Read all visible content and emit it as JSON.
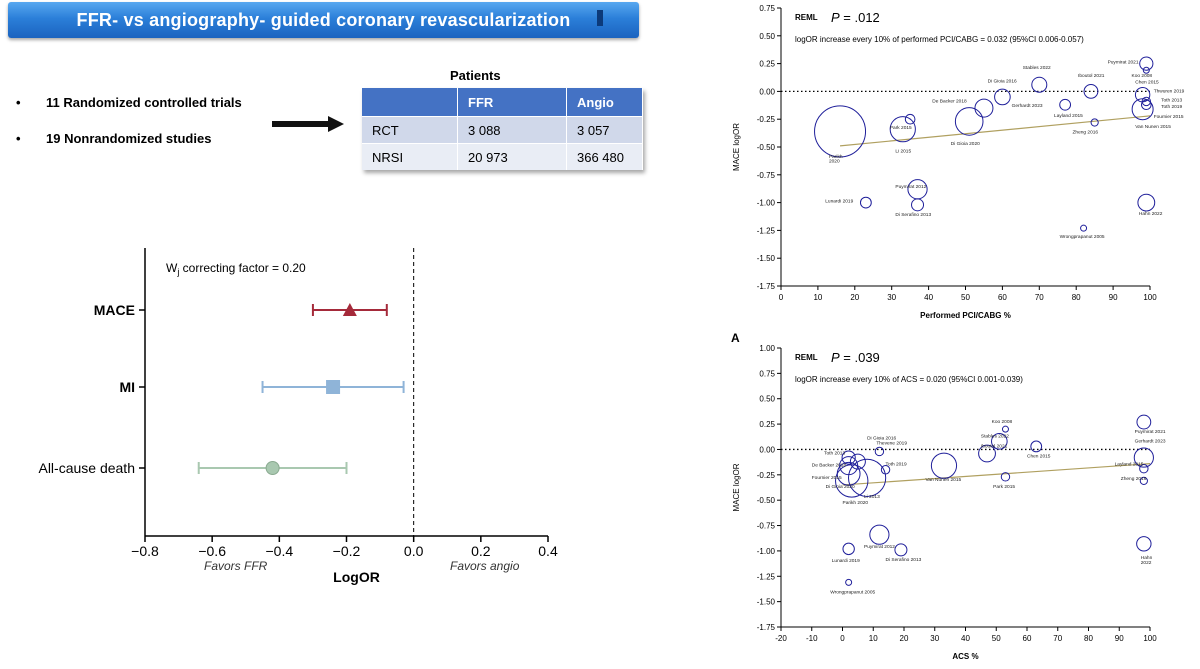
{
  "banner": {
    "title": "FFR- vs angiography- guided  coronary  revascularization"
  },
  "bullets": [
    {
      "marker": "•",
      "text": "11 Randomized controlled trials"
    },
    {
      "marker": "•",
      "text": "19 Nonrandomized studies"
    }
  ],
  "patients_table": {
    "title": "Patients",
    "headers": [
      "",
      "FFR",
      "Angio"
    ],
    "rows": [
      [
        "RCT",
        "3 088",
        "3 057"
      ],
      [
        "NRSI",
        "20 973",
        "366 480"
      ]
    ]
  },
  "colors": {
    "banner": "#2b7fd9",
    "mace": "#a52a3a",
    "mi": "#8fb4d8",
    "death": "#a9c8b0",
    "bubble": "#1f1f9a",
    "trend": "#b0a060"
  },
  "chart_data": [
    {
      "type": "forest",
      "annotation_main": "W",
      "annotation_sub": "j",
      "annotation_rest": " correcting factor =  0.20",
      "xlabel": "LogOR",
      "xlim": [
        -0.8,
        0.4
      ],
      "xticks": [
        -0.8,
        -0.6,
        -0.4,
        -0.2,
        0.0,
        0.2,
        0.4
      ],
      "tick_labels": [
        "−0.8",
        "−0.6",
        "−0.4",
        "−0.2",
        "0.0",
        "0.2",
        "0.4"
      ],
      "left_note": "Favors FFR",
      "right_note": "Favors angio",
      "rows": [
        {
          "label": "MACE",
          "bold": true,
          "estimate": -0.19,
          "lower": -0.3,
          "upper": -0.08,
          "marker": "triangle",
          "color": "#a52a3a"
        },
        {
          "label": "MI",
          "bold": true,
          "estimate": -0.24,
          "lower": -0.45,
          "upper": -0.03,
          "marker": "square",
          "color": "#8fb4d8"
        },
        {
          "label": "All-cause death",
          "bold": false,
          "estimate": -0.42,
          "lower": -0.64,
          "upper": -0.2,
          "marker": "circle",
          "color": "#a9c8b0"
        }
      ]
    },
    {
      "type": "scatter",
      "panel_label": "",
      "method": "REML",
      "p_text": "P = .012",
      "note": "logOR increase every 10% of performed PCI/CABG = 0.032 (95%CI 0.006-0.057)",
      "xlabel": "Performed PCI/CABG %",
      "ylabel": "MACE logOR",
      "xlim": [
        0,
        100
      ],
      "ylim": [
        -1.75,
        0.75
      ],
      "xticks": [
        0,
        10,
        20,
        30,
        40,
        50,
        60,
        70,
        80,
        90,
        100
      ],
      "yticks": [
        "0.75",
        "0.50",
        "0.25",
        "0.00",
        "-0.25",
        "-0.50",
        "-0.75",
        "-1.00",
        "-1.25",
        "-1.50",
        "-1.75"
      ],
      "trend": {
        "x": [
          16,
          100
        ],
        "y": [
          -0.49,
          -0.22
        ]
      },
      "points": [
        {
          "x": 16,
          "y": -0.36,
          "r": 8.5,
          "label": "Parikh 2020"
        },
        {
          "x": 33,
          "y": -0.34,
          "r": 4.2,
          "label": "Park 2015"
        },
        {
          "x": 35,
          "y": -0.25,
          "r": 1.6,
          "label": "Li 2015"
        },
        {
          "x": 23,
          "y": -1.0,
          "r": 1.8,
          "label": "Lunardi 2019"
        },
        {
          "x": 37,
          "y": -0.88,
          "r": 3.2,
          "label": "Puymirat 2012"
        },
        {
          "x": 37,
          "y": -1.02,
          "r": 2.0,
          "label": "Di Serafino 2013"
        },
        {
          "x": 51,
          "y": -0.27,
          "r": 4.6,
          "label": "Di Gioia 2020"
        },
        {
          "x": 55,
          "y": -0.15,
          "r": 3.0,
          "label": "De Backer 2018"
        },
        {
          "x": 60,
          "y": -0.05,
          "r": 2.6,
          "label": "Di Gioia 2016"
        },
        {
          "x": 70,
          "y": 0.06,
          "r": 2.5,
          "label": "Stables 2022"
        },
        {
          "x": 77,
          "y": -0.12,
          "r": 1.8,
          "label": "Gerhardt 2023"
        },
        {
          "x": 84,
          "y": 0.0,
          "r": 2.3,
          "label": "Iboutol 2021"
        },
        {
          "x": 85,
          "y": -0.28,
          "r": 1.2,
          "label": "Layland 2015"
        },
        {
          "x": 82,
          "y": -1.23,
          "r": 1.0,
          "label": "Zheng 2016"
        },
        {
          "x": 99,
          "y": 0.25,
          "r": 2.2,
          "label": "Puymirat 2021"
        },
        {
          "x": 99,
          "y": 0.19,
          "r": 1.0,
          "label": "Koo 2008"
        },
        {
          "x": 98,
          "y": -0.03,
          "r": 2.4,
          "label": "Chen 2015"
        },
        {
          "x": 99,
          "y": -0.09,
          "r": 1.4,
          "label": "Thwuren 2019"
        },
        {
          "x": 99,
          "y": -0.12,
          "r": 1.6,
          "label": "Toth 2013"
        },
        {
          "x": 98,
          "y": -0.16,
          "r": 3.5,
          "label": "Van Nunen 2015"
        },
        {
          "x": 99,
          "y": -1.0,
          "r": 2.8,
          "label": "Hahn 2022"
        }
      ],
      "labels": [
        {
          "text": "Parikh",
          "x": 13,
          "y": -0.6
        },
        {
          "text": "2020",
          "x": 13,
          "y": -0.64
        },
        {
          "text": "Park 2015",
          "x": 29.5,
          "y": -0.34
        },
        {
          "text": "Li 2015",
          "x": 31,
          "y": -0.55
        },
        {
          "text": "Lunardi 2019",
          "x": 12,
          "y": -1.0
        },
        {
          "text": "Puymirat 2012",
          "x": 31,
          "y": -0.87
        },
        {
          "text": "Di Serafino 2013",
          "x": 31,
          "y": -1.12
        },
        {
          "text": "Di Gioia 2020",
          "x": 46,
          "y": -0.48
        },
        {
          "text": "De Backer 2018",
          "x": 41,
          "y": -0.1
        },
        {
          "text": "Di Gioia 2016",
          "x": 56,
          "y": 0.08
        },
        {
          "text": "Stables 2022",
          "x": 65.5,
          "y": 0.2
        },
        {
          "text": "Gerhardt 2023",
          "x": 62.5,
          "y": -0.14
        },
        {
          "text": "Iboutol 2021",
          "x": 80.5,
          "y": 0.13
        },
        {
          "text": "Layland 2015",
          "x": 74,
          "y": -0.23
        },
        {
          "text": "Zheng 2016",
          "x": 79,
          "y": -0.38
        },
        {
          "text": "Wrongprapanut 2005",
          "x": 75.5,
          "y": -1.32
        },
        {
          "text": "Puymirat 2021",
          "x": 88.5,
          "y": 0.25
        },
        {
          "text": "Koo 2008",
          "x": 95,
          "y": 0.13
        },
        {
          "text": "Chen 2015",
          "x": 96,
          "y": 0.07
        },
        {
          "text": "Thwuren 2019",
          "x": 101,
          "y": -0.01
        },
        {
          "text": "Toth 2013",
          "x": 103,
          "y": -0.09
        },
        {
          "text": "Toth 2019",
          "x": 103,
          "y": -0.15
        },
        {
          "text": "Fournier 2015",
          "x": 101,
          "y": -0.24
        },
        {
          "text": "Van Nunen 2015",
          "x": 96,
          "y": -0.33
        },
        {
          "text": "Hahn 2022",
          "x": 97,
          "y": -1.11
        }
      ]
    },
    {
      "type": "scatter",
      "panel_label": "A",
      "method": "REML",
      "p_text": "P = .039",
      "note": "logOR increase every 10% of ACS = 0.020 (95%CI 0.001-0.039)",
      "xlabel": "ACS %",
      "ylabel": "MACE logOR",
      "xlim": [
        -20,
        100
      ],
      "ylim": [
        -1.75,
        1.0
      ],
      "xticks": [
        -20,
        -10,
        0,
        10,
        20,
        30,
        40,
        50,
        60,
        70,
        80,
        90,
        100
      ],
      "yticks": [
        "1.00",
        "0.75",
        "0.50",
        "0.25",
        "0.00",
        "-0.25",
        "-0.50",
        "-0.75",
        "-1.00",
        "-1.25",
        "-1.50",
        "-1.75"
      ],
      "trend": {
        "x": [
          0,
          100
        ],
        "y": [
          -0.35,
          -0.14
        ]
      },
      "points": [
        {
          "x": 2,
          "y": -0.08,
          "r": 2.2,
          "label": "Toth 2013"
        },
        {
          "x": 2,
          "y": -0.16,
          "r": 3.0,
          "label": "De Backer 2018"
        },
        {
          "x": 2,
          "y": -0.24,
          "r": 3.8,
          "label": "Fournier 2015"
        },
        {
          "x": 3,
          "y": -0.31,
          "r": 5.4,
          "label": "Di Gioia 2020"
        },
        {
          "x": 8,
          "y": -0.28,
          "r": 6.2,
          "label": "Parikh 2020"
        },
        {
          "x": 5,
          "y": -0.12,
          "r": 2.5,
          "label": "Di Gioia 2016"
        },
        {
          "x": 12,
          "y": -0.02,
          "r": 1.4,
          "label": "Thwuren 2019"
        },
        {
          "x": 14,
          "y": -0.2,
          "r": 1.4,
          "label": "Toth 2019"
        },
        {
          "x": 33,
          "y": -0.16,
          "r": 4.2,
          "label": "Van Nunen 2015"
        },
        {
          "x": 47,
          "y": -0.04,
          "r": 2.8,
          "label": "Iboutol 2021"
        },
        {
          "x": 51,
          "y": 0.08,
          "r": 2.6,
          "label": "Stables 2022"
        },
        {
          "x": 53,
          "y": 0.2,
          "r": 1.0,
          "label": "Koo 2008"
        },
        {
          "x": 53,
          "y": -0.27,
          "r": 1.4,
          "label": "Park 2015"
        },
        {
          "x": 63,
          "y": 0.03,
          "r": 1.8,
          "label": "Chen 2015"
        },
        {
          "x": 98,
          "y": 0.27,
          "r": 2.3,
          "label": "Puymirat 2021"
        },
        {
          "x": 98,
          "y": -0.08,
          "r": 3.2,
          "label": "Gerhardt 2023"
        },
        {
          "x": 98,
          "y": -0.19,
          "r": 1.4,
          "label": "Layland 2015"
        },
        {
          "x": 98,
          "y": -0.31,
          "r": 1.2,
          "label": "Zheng 2016"
        },
        {
          "x": 98,
          "y": -0.93,
          "r": 2.4,
          "label": "Hahn 2022"
        },
        {
          "x": 2,
          "y": -0.98,
          "r": 1.9,
          "label": "Lunardi 2019"
        },
        {
          "x": 12,
          "y": -0.84,
          "r": 3.2,
          "label": "Puymirat 2012"
        },
        {
          "x": 19,
          "y": -0.99,
          "r": 2.0,
          "label": "Di Serafino 2013"
        },
        {
          "x": 2,
          "y": -1.31,
          "r": 1.0,
          "label": "Wrongprapanut 2005"
        }
      ],
      "labels": [
        {
          "text": "Di Gioia 2016",
          "x": 8,
          "y": 0.1
        },
        {
          "text": "Thevene 2019",
          "x": 11,
          "y": 0.05
        },
        {
          "text": "Toth 2013",
          "x": -6,
          "y": -0.05
        },
        {
          "text": "De Backer 2018",
          "x": -10,
          "y": -0.17
        },
        {
          "text": "Toth 2019",
          "x": 14,
          "y": -0.16
        },
        {
          "text": "Fournier 2015",
          "x": -10,
          "y": -0.29
        },
        {
          "text": "Di Gioia 2020",
          "x": -5.5,
          "y": -0.38
        },
        {
          "text": "Li 2013",
          "x": 7,
          "y": -0.48
        },
        {
          "text": "Parikh 2020",
          "x": 0,
          "y": -0.54
        },
        {
          "text": "Van Nunen 2015",
          "x": 27,
          "y": -0.31
        },
        {
          "text": "Stables 2022",
          "x": 45,
          "y": 0.12
        },
        {
          "text": "Iboutol 2021",
          "x": 45,
          "y": 0.02
        },
        {
          "text": "Koo 2008",
          "x": 48.5,
          "y": 0.26
        },
        {
          "text": "Park 2015",
          "x": 49,
          "y": -0.38
        },
        {
          "text": "Chen 2015",
          "x": 60,
          "y": -0.08
        },
        {
          "text": "Puymirat 2021",
          "x": 95,
          "y": 0.16
        },
        {
          "text": "Gerhardt 2023",
          "x": 95,
          "y": 0.07
        },
        {
          "text": "Layland 2015",
          "x": 88.5,
          "y": -0.16
        },
        {
          "text": "Zheng 2016",
          "x": 90.5,
          "y": -0.3
        },
        {
          "text": "Lunardi 2019",
          "x": -3.5,
          "y": -1.11
        },
        {
          "text": "Puymirat 2012",
          "x": 7,
          "y": -0.97
        },
        {
          "text": "Di Serafino 2013",
          "x": 14,
          "y": -1.1
        },
        {
          "text": "Wrongprapanut 2005",
          "x": -4,
          "y": -1.42
        },
        {
          "text": "Hahn",
          "x": 97,
          "y": -1.08
        },
        {
          "text": "2022",
          "x": 97,
          "y": -1.13
        }
      ]
    }
  ]
}
